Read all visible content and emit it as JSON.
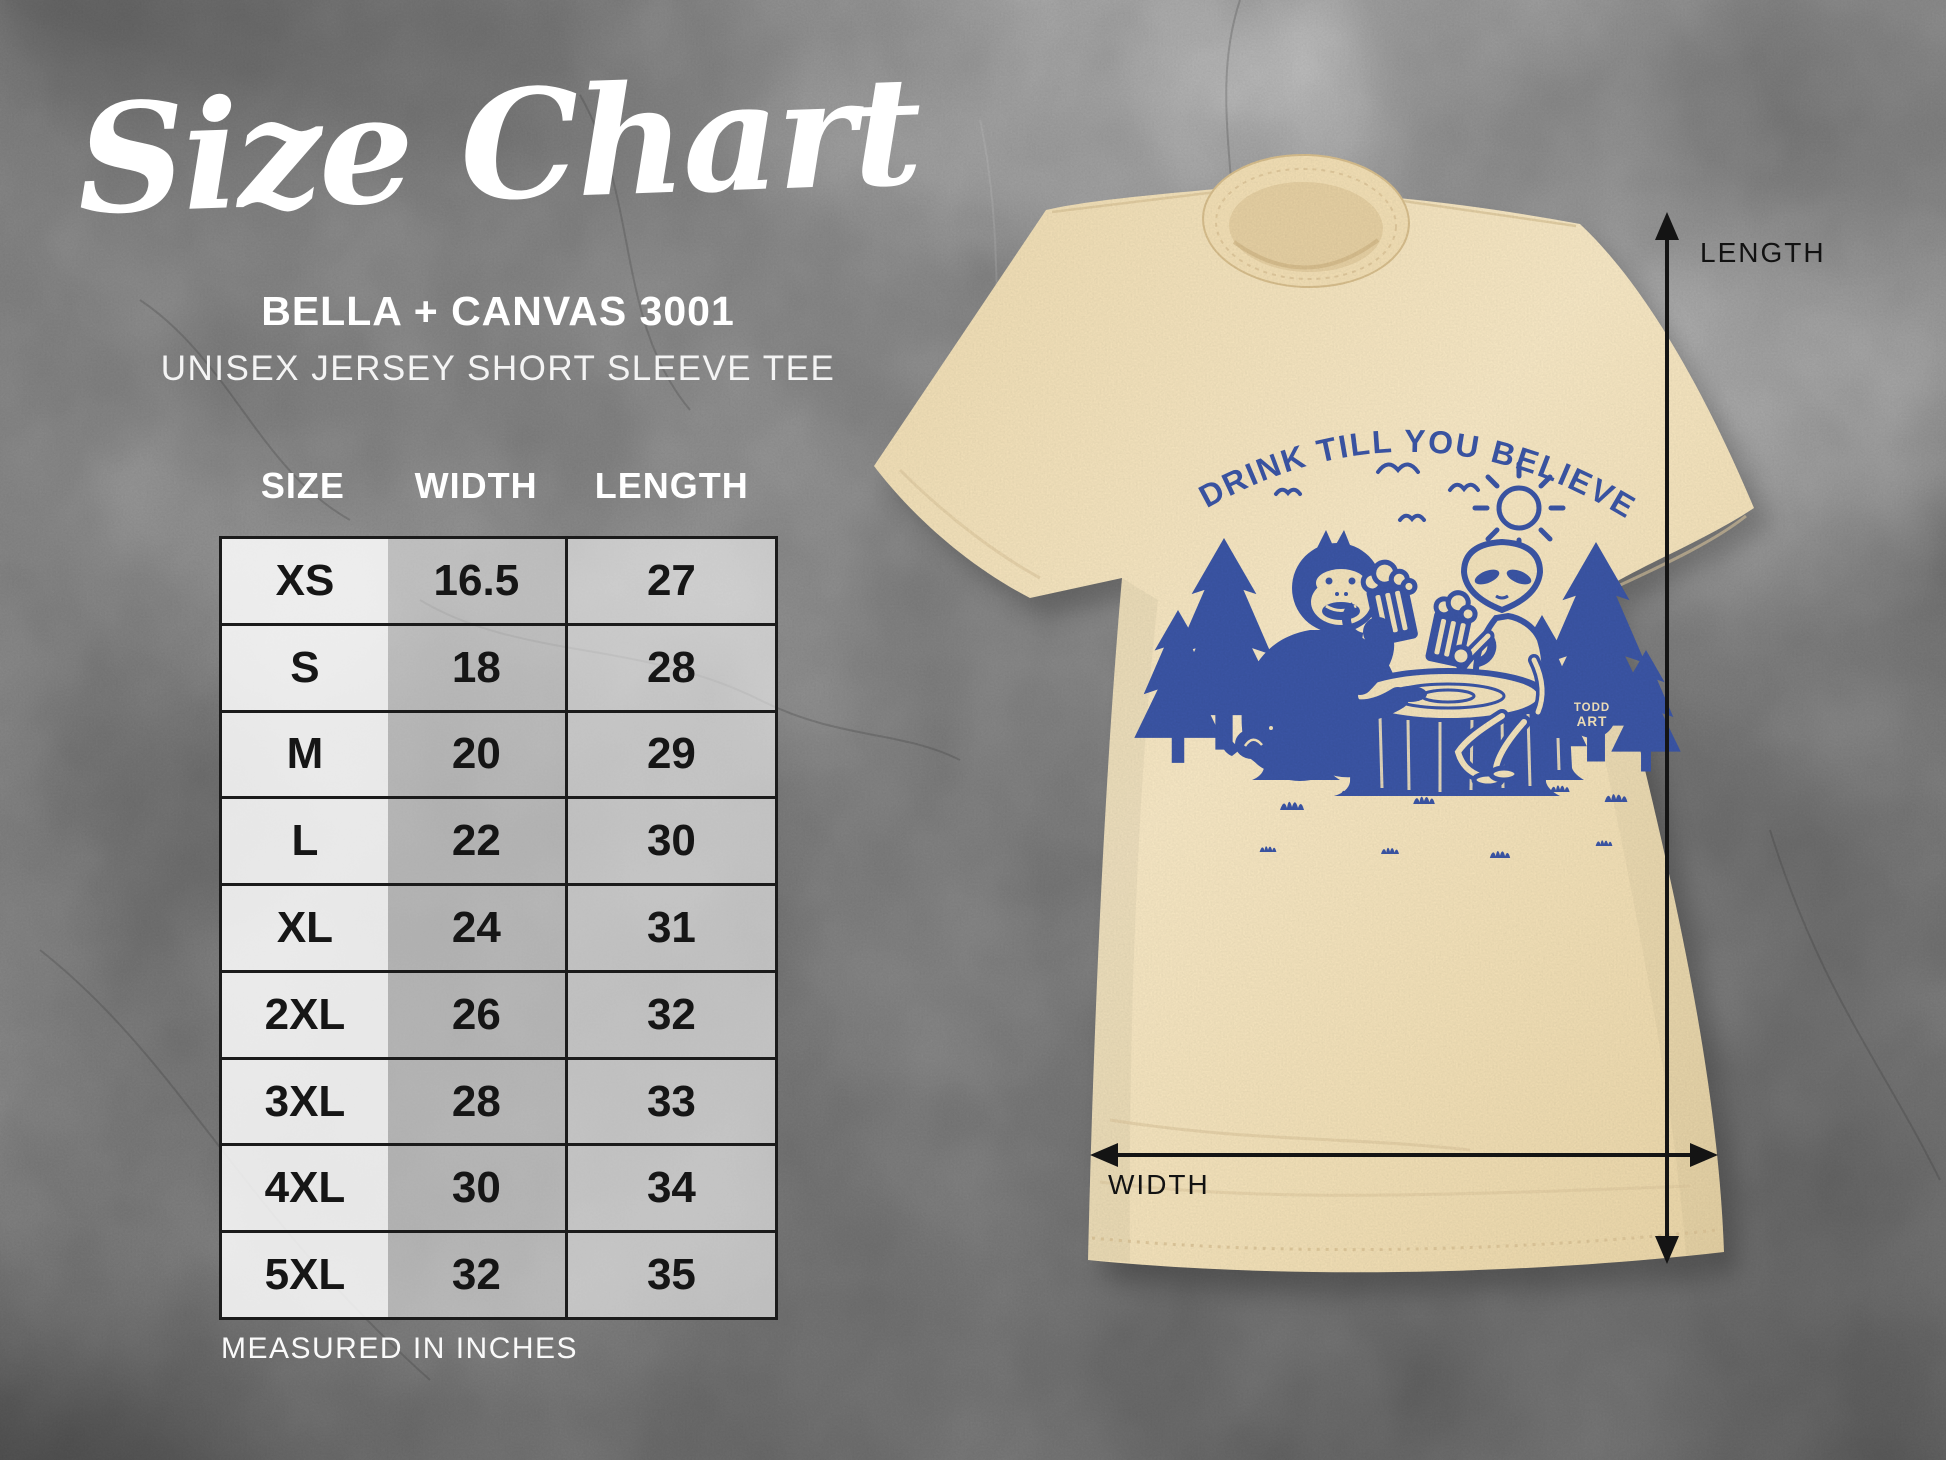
{
  "header": {
    "title": "Size Chart",
    "brand": "BELLA + CANVAS 3001",
    "product": "UNISEX JERSEY SHORT SLEEVE TEE"
  },
  "size_table": {
    "columns": [
      "SIZE",
      "WIDTH",
      "LENGTH"
    ],
    "rows": [
      [
        "XS",
        "16.5",
        "27"
      ],
      [
        "S",
        "18",
        "28"
      ],
      [
        "M",
        "20",
        "29"
      ],
      [
        "L",
        "22",
        "30"
      ],
      [
        "XL",
        "24",
        "31"
      ],
      [
        "2XL",
        "26",
        "32"
      ],
      [
        "3XL",
        "28",
        "33"
      ],
      [
        "4XL",
        "30",
        "34"
      ],
      [
        "5XL",
        "32",
        "35"
      ]
    ],
    "footnote": "MEASURED IN INCHES"
  },
  "tshirt": {
    "graphic_text": "DRINK TILL YOU BELIEVE",
    "badge": {
      "line1": "TODD",
      "line2": "ART"
    },
    "colors": {
      "shirt": "#f3e2ba",
      "graphic_blue": "#3b55a5"
    }
  },
  "dimension_labels": {
    "length": "LENGTH",
    "width": "WIDTH"
  },
  "chart_data": {
    "type": "table",
    "title": "Bella + Canvas 3001 Unisex Jersey Short Sleeve Tee — Size Chart",
    "columns": [
      "SIZE",
      "WIDTH",
      "LENGTH"
    ],
    "units": "inches",
    "rows": [
      [
        "XS",
        16.5,
        27
      ],
      [
        "S",
        18,
        28
      ],
      [
        "M",
        20,
        29
      ],
      [
        "L",
        22,
        30
      ],
      [
        "XL",
        24,
        31
      ],
      [
        "2XL",
        26,
        32
      ],
      [
        "3XL",
        28,
        33
      ],
      [
        "4XL",
        30,
        34
      ],
      [
        "5XL",
        32,
        35
      ]
    ]
  }
}
